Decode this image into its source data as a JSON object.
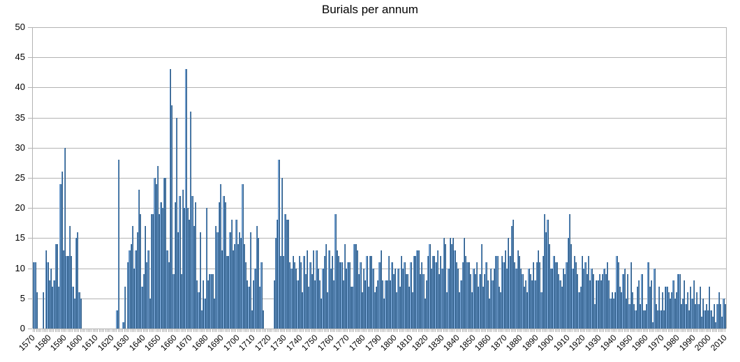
{
  "chart_data": {
    "type": "bar",
    "title": "Burials per annum",
    "xlabel": "",
    "ylabel": "",
    "ylim": [
      0,
      50
    ],
    "yticks": [
      0,
      5,
      10,
      15,
      20,
      25,
      30,
      35,
      40,
      45,
      50
    ],
    "grid": true,
    "legend": "none",
    "bar_color": "#729fcf",
    "bar_edge_color": "#1f4e79",
    "x_start": 1570,
    "x_end": 2017,
    "xtick_labels": [
      "1570",
      "1580",
      "1590",
      "1600",
      "1610",
      "1620",
      "1630",
      "1640",
      "1650",
      "1660",
      "1670",
      "1680",
      "1690",
      "1700",
      "1710",
      "1720",
      "1730",
      "1740",
      "1750",
      "1760",
      "1770",
      "1780",
      "1790",
      "1800",
      "1810",
      "1820",
      "1830",
      "1840",
      "1850",
      "1860",
      "1870",
      "1880",
      "1890",
      "1900",
      "1910",
      "1920",
      "1930",
      "1940",
      "1950",
      "1960",
      "1970",
      "1980",
      "1990",
      "2000",
      "2010"
    ],
    "values": [
      11,
      11,
      6,
      0,
      0,
      0,
      6,
      0,
      13,
      11,
      8,
      10,
      7,
      8,
      14,
      14,
      7,
      24,
      26,
      13,
      30,
      12,
      12,
      17,
      12,
      7,
      5,
      15,
      16,
      6,
      5,
      0,
      0,
      0,
      0,
      0,
      0,
      0,
      0,
      0,
      0,
      0,
      0,
      0,
      0,
      0,
      0,
      0,
      0,
      0,
      0,
      0,
      0,
      3,
      28,
      0,
      0,
      1,
      7,
      0,
      11,
      13,
      14,
      17,
      10,
      13,
      16,
      23,
      19,
      7,
      9,
      17,
      11,
      13,
      5,
      19,
      19,
      25,
      24,
      27,
      19,
      21,
      20,
      25,
      25,
      13,
      11,
      43,
      37,
      9,
      21,
      35,
      16,
      22,
      9,
      23,
      20,
      43,
      20,
      18,
      36,
      22,
      17,
      21,
      8,
      6,
      16,
      3,
      8,
      5,
      20,
      8,
      9,
      9,
      9,
      5,
      17,
      16,
      21,
      24,
      13,
      22,
      21,
      12,
      12,
      16,
      18,
      13,
      14,
      18,
      14,
      16,
      15,
      24,
      14,
      11,
      8,
      7,
      16,
      3,
      8,
      10,
      17,
      15,
      7,
      11,
      3,
      0,
      0,
      0,
      0,
      0,
      0,
      8,
      15,
      18,
      28,
      12,
      25,
      12,
      19,
      18,
      18,
      11,
      10,
      12,
      11,
      10,
      8,
      12,
      11,
      6,
      12,
      9,
      13,
      7,
      11,
      9,
      13,
      8,
      13,
      10,
      8,
      5,
      10,
      12,
      14,
      6,
      13,
      10,
      12,
      8,
      19,
      13,
      12,
      11,
      11,
      8,
      14,
      10,
      11,
      11,
      7,
      7,
      14,
      14,
      13,
      9,
      11,
      6,
      10,
      8,
      12,
      7,
      12,
      12,
      10,
      6,
      7,
      8,
      11,
      13,
      8,
      5,
      8,
      8,
      12,
      8,
      11,
      9,
      10,
      6,
      10,
      7,
      12,
      10,
      11,
      9,
      9,
      7,
      11,
      6,
      12,
      12,
      13,
      13,
      9,
      11,
      9,
      5,
      8,
      12,
      14,
      10,
      12,
      12,
      11,
      13,
      9,
      12,
      10,
      15,
      14,
      6,
      10,
      15,
      14,
      15,
      13,
      11,
      10,
      6,
      8,
      11,
      15,
      12,
      11,
      11,
      9,
      6,
      10,
      9,
      11,
      7,
      9,
      14,
      7,
      9,
      11,
      8,
      5,
      10,
      8,
      10,
      12,
      12,
      7,
      6,
      12,
      11,
      13,
      10,
      15,
      12,
      17,
      18,
      11,
      10,
      13,
      12,
      10,
      9,
      7,
      8,
      6,
      10,
      9,
      8,
      11,
      8,
      11,
      13,
      11,
      6,
      12,
      19,
      16,
      18,
      14,
      10,
      10,
      12,
      11,
      11,
      9,
      8,
      7,
      10,
      9,
      11,
      15,
      19,
      14,
      10,
      12,
      11,
      9,
      6,
      7,
      12,
      10,
      11,
      9,
      12,
      8,
      10,
      9,
      4,
      8,
      8,
      9,
      8,
      9,
      10,
      9,
      11,
      8,
      5,
      6,
      5,
      6,
      12,
      11,
      7,
      6,
      9,
      10,
      5,
      9,
      4,
      11,
      6,
      4,
      3,
      7,
      8,
      4,
      9,
      3,
      3,
      4,
      11,
      7,
      8,
      1,
      10,
      4,
      3,
      7,
      3,
      6,
      3,
      7,
      7,
      6,
      5,
      6,
      8,
      5,
      6,
      9,
      9,
      4,
      5,
      8,
      4,
      6,
      3,
      7,
      5,
      8,
      4,
      6,
      4,
      7,
      2,
      5,
      3,
      4,
      3,
      7,
      3,
      2,
      4,
      1,
      4,
      6,
      4,
      2,
      5,
      4
    ]
  }
}
